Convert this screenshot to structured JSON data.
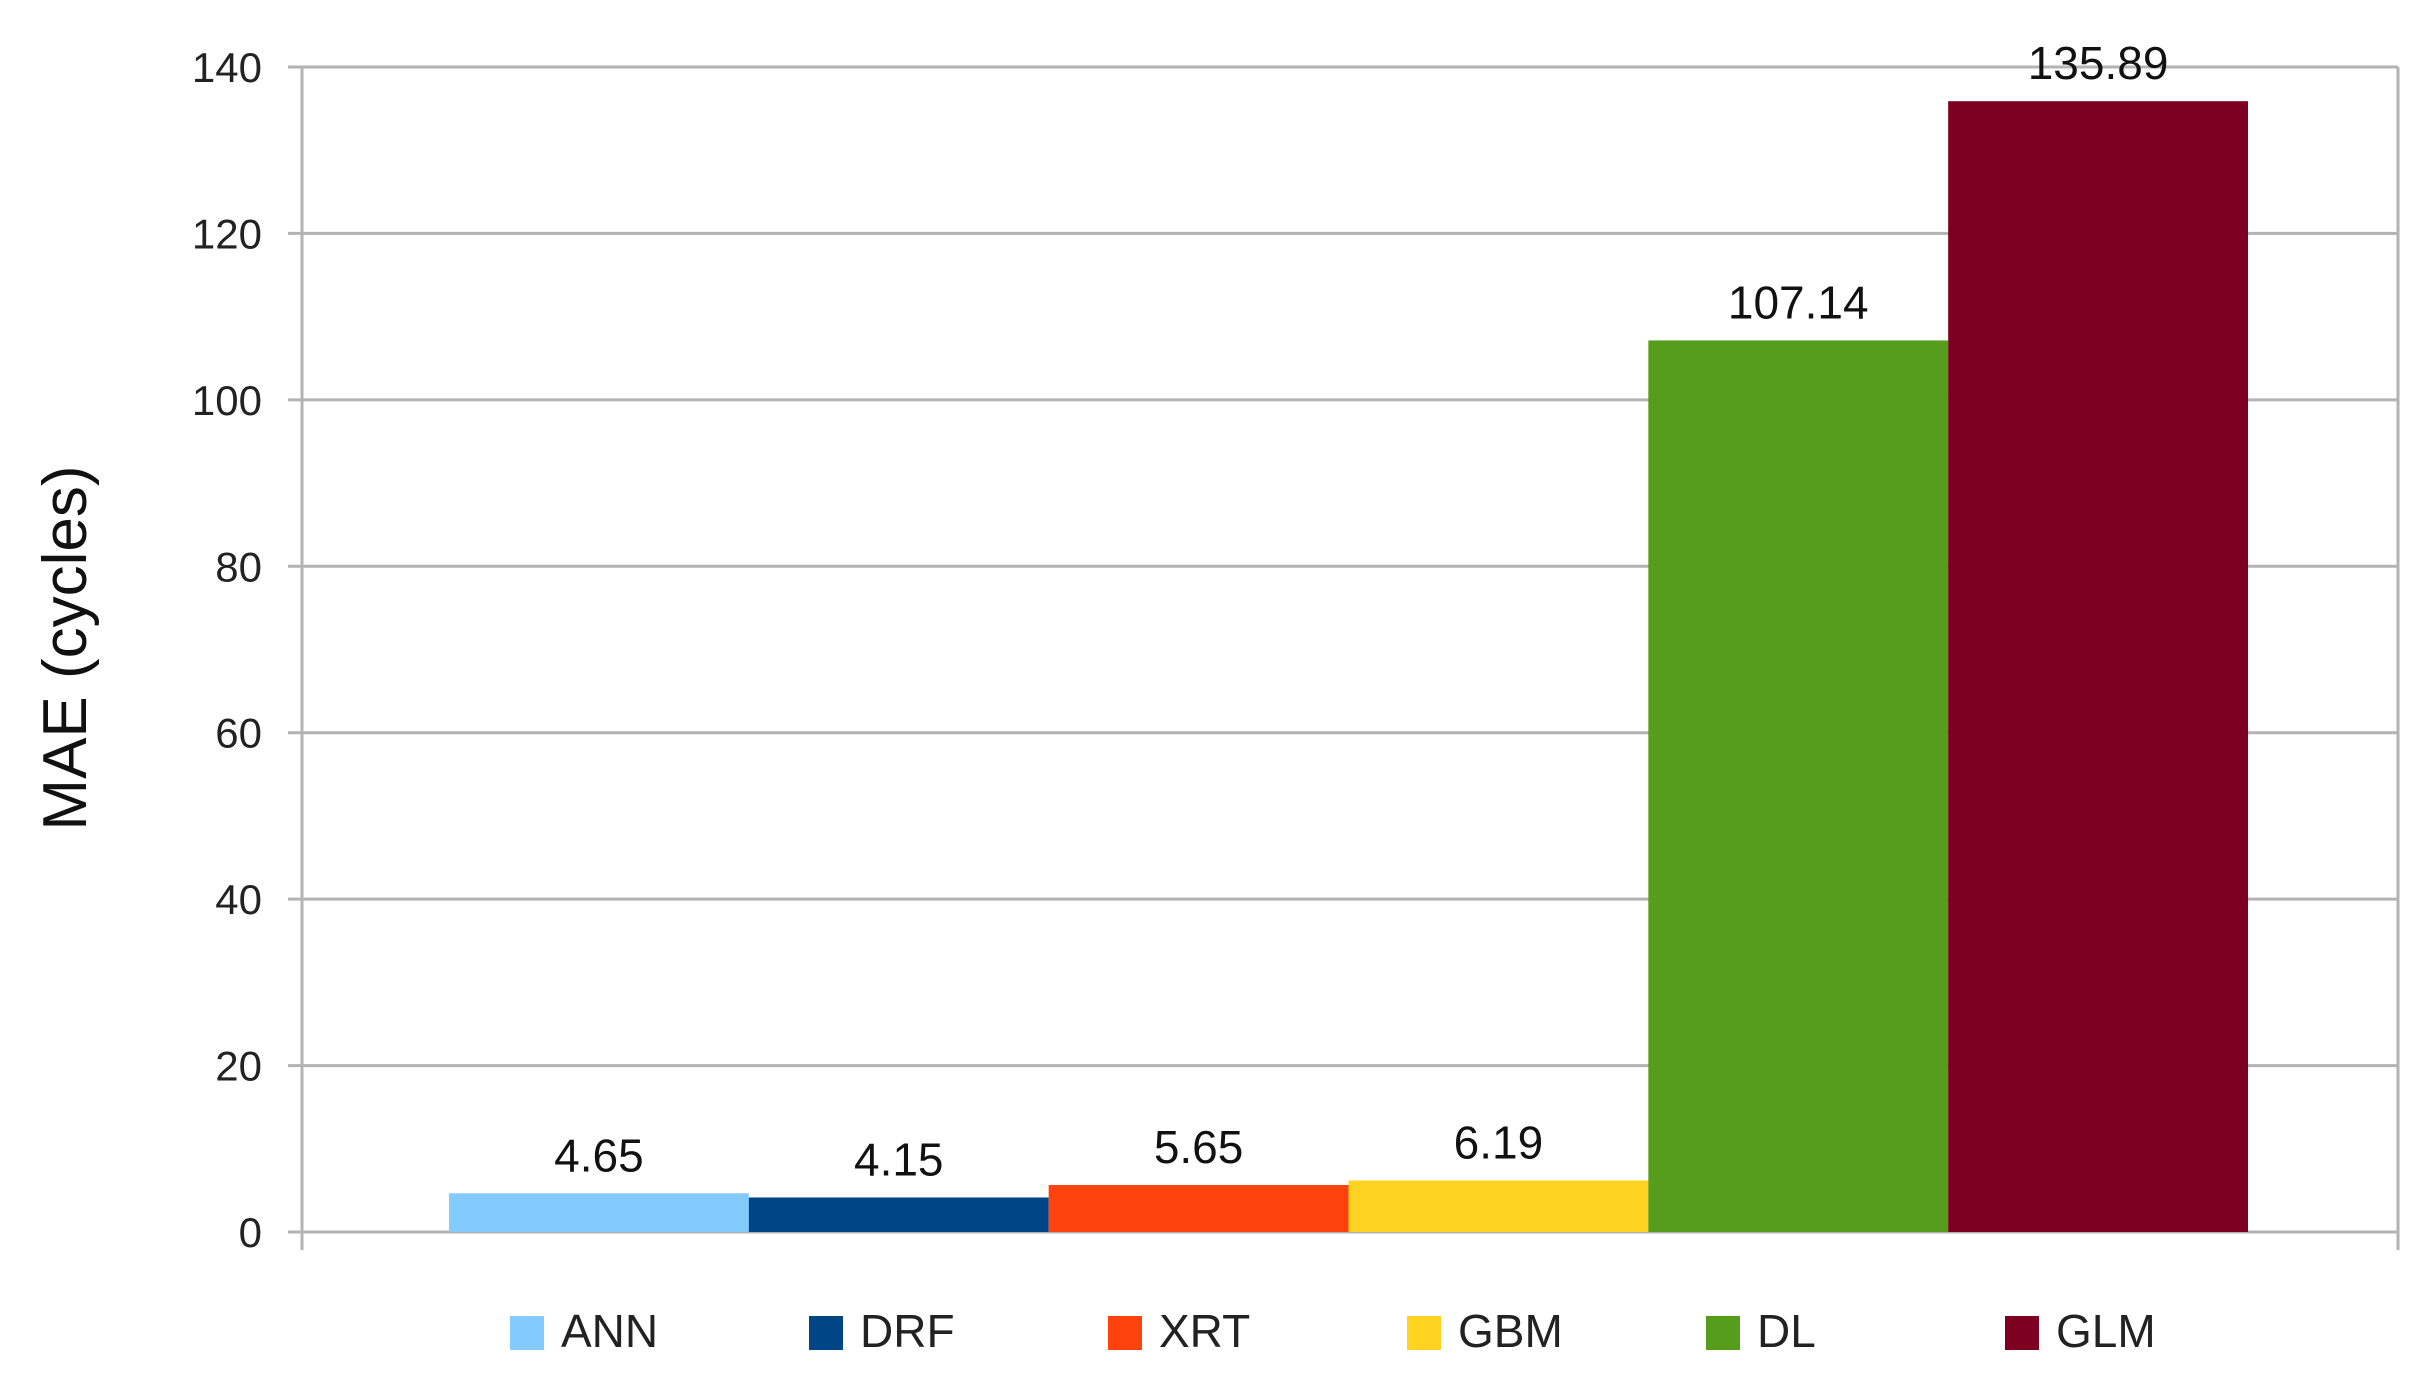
{
  "chart_data": {
    "type": "bar",
    "title": "",
    "xlabel": "",
    "ylabel": "MAE (cycles)",
    "ylim": [
      0,
      140
    ],
    "yticks": [
      0,
      20,
      40,
      60,
      80,
      100,
      120,
      140
    ],
    "grid": true,
    "legend_position": "bottom",
    "series": [
      {
        "name": "ANN",
        "value": 4.65,
        "label": "4.65",
        "color": "#83caff"
      },
      {
        "name": "DRF",
        "value": 4.15,
        "label": "4.15",
        "color": "#004586"
      },
      {
        "name": "XRT",
        "value": 5.65,
        "label": "5.65",
        "color": "#ff420e"
      },
      {
        "name": "GBM",
        "value": 6.19,
        "label": "6.19",
        "color": "#ffd320"
      },
      {
        "name": "DL",
        "value": 107.14,
        "label": "107.14",
        "color": "#579d1c"
      },
      {
        "name": "GLM",
        "value": 135.89,
        "label": "135.89",
        "color": "#7e0021"
      }
    ]
  }
}
